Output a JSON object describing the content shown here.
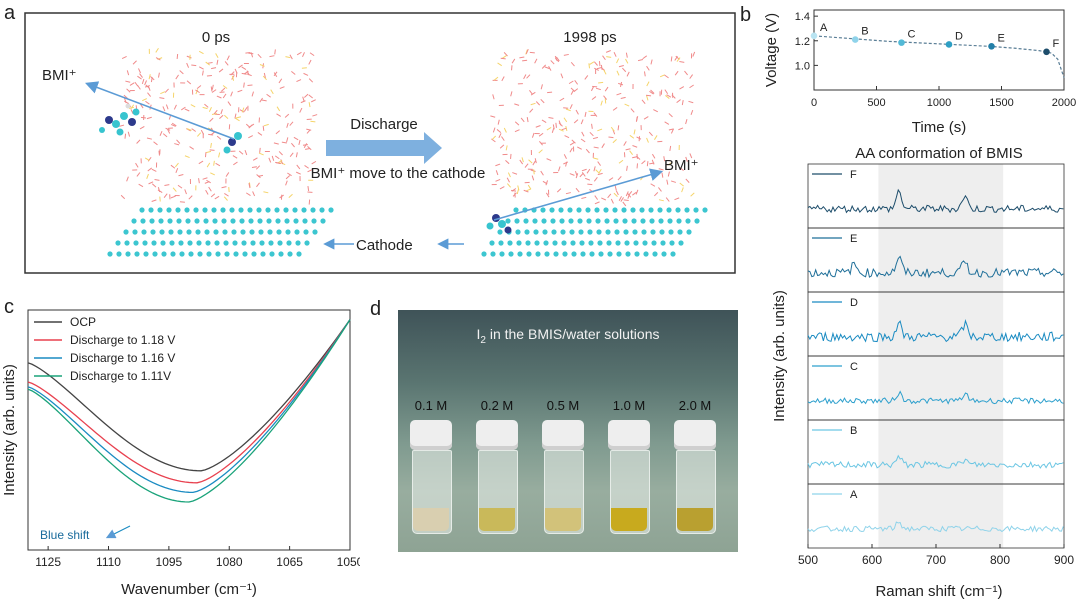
{
  "figure": {
    "panels": {
      "a": {
        "label": "a",
        "time_left": "0 ps",
        "time_right": "1998 ps",
        "bmi_left": "BMI⁺",
        "bmi_right": "BMI⁺",
        "arrow_label": "Discharge",
        "move_text": "BMI⁺ move to the cathode",
        "cathode_label": "Cathode"
      },
      "b": {
        "label": "b"
      },
      "c": {
        "label": "c"
      },
      "d": {
        "label": "d",
        "title_main": "I",
        "title_sub": "2",
        "title_rest": " in the BMIS/water  solutions",
        "concentrations": [
          "0.1 M",
          "0.2 M",
          "0.5 M",
          "1.0 M",
          "2.0 M"
        ],
        "liquid_colors": [
          "#d9cfb0",
          "#c9b95a",
          "#d2c27a",
          "#c8aa1e",
          "#b9a030"
        ]
      }
    },
    "colors": {
      "dark_navy": "#1d4d6b",
      "mid_blue": "#1a8bc2",
      "light_blue": "#6cc6e3",
      "red": "#e8414f",
      "green": "#1aa37a",
      "graphene": "#3cc6d0",
      "arrow_blue": "#5b9bd5",
      "shade": "#eeeeee"
    }
  },
  "chart_data": [
    {
      "type": "line",
      "panel": "b",
      "title": "",
      "xlabel": "Time (s)",
      "ylabel": "Voltage (V)",
      "xlim": [
        0,
        2000
      ],
      "ylim": [
        0.8,
        1.45
      ],
      "xticks": [
        0,
        500,
        1000,
        1500,
        2000
      ],
      "yticks": [
        1.0,
        1.2,
        1.4
      ],
      "x": [
        0,
        200,
        400,
        600,
        800,
        1000,
        1200,
        1400,
        1600,
        1800,
        1900,
        1950,
        2000
      ],
      "y": [
        1.24,
        1.225,
        1.21,
        1.195,
        1.185,
        1.175,
        1.165,
        1.155,
        1.14,
        1.12,
        1.1,
        1.05,
        0.9
      ],
      "points": [
        {
          "label": "A",
          "x": 0,
          "y": 1.24
        },
        {
          "label": "B",
          "x": 330,
          "y": 1.21
        },
        {
          "label": "C",
          "x": 700,
          "y": 1.185
        },
        {
          "label": "D",
          "x": 1080,
          "y": 1.17
        },
        {
          "label": "E",
          "x": 1420,
          "y": 1.155
        },
        {
          "label": "F",
          "x": 1860,
          "y": 1.11
        }
      ]
    },
    {
      "type": "line",
      "panel": "b-raman",
      "title": "AA conformation of BMIS",
      "xlabel": "Raman shift (cm⁻¹)",
      "ylabel": "Intensity (arb. units)",
      "xlim": [
        500,
        900
      ],
      "xticks": [
        500,
        600,
        700,
        800,
        900
      ],
      "shaded_range": [
        610,
        805
      ],
      "series": [
        {
          "name": "F",
          "peaks": [
            [
              642,
              2.2
            ],
            [
              745,
              1.6
            ]
          ],
          "noise": 0.45
        },
        {
          "name": "E",
          "peaks": [
            [
              572,
              1.0
            ],
            [
              642,
              1.9
            ],
            [
              745,
              1.4
            ]
          ],
          "noise": 0.55
        },
        {
          "name": "D",
          "peaks": [
            [
              642,
              1.6
            ],
            [
              745,
              1.5
            ]
          ],
          "noise": 0.6
        },
        {
          "name": "C",
          "peaks": [
            [
              642,
              1.0
            ],
            [
              745,
              0.8
            ]
          ],
          "noise": 0.35
        },
        {
          "name": "B",
          "peaks": [
            [
              642,
              0.9
            ],
            [
              745,
              0.6
            ]
          ],
          "noise": 0.4
        },
        {
          "name": "A",
          "peaks": [
            [
              642,
              0.8
            ]
          ],
          "noise": 0.35
        }
      ]
    },
    {
      "type": "line",
      "panel": "c",
      "title": "",
      "xlabel": "Wavenumber (cm⁻¹)",
      "ylabel": "Intensity (arb. units)",
      "xlim": [
        1130,
        1050
      ],
      "xticks": [
        1125,
        1110,
        1095,
        1080,
        1065,
        1050
      ],
      "annotation": "Blue shift",
      "series": [
        {
          "name": "OCP",
          "min_x": 1087,
          "min_y": 0.33,
          "left_y": 0.78
        },
        {
          "name": "Discharge to 1.18 V",
          "min_x": 1088,
          "min_y": 0.28,
          "left_y": 0.7
        },
        {
          "name": "Discharge to 1.16 V",
          "min_x": 1089,
          "min_y": 0.24,
          "left_y": 0.68
        },
        {
          "name": "Discharge to 1.11V",
          "min_x": 1090,
          "min_y": 0.2,
          "left_y": 0.67
        }
      ]
    }
  ]
}
